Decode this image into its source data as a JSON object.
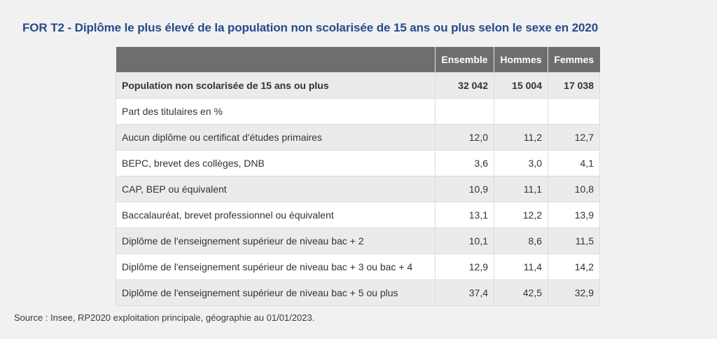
{
  "title": "FOR T2 - Diplôme le plus élevé de la population non scolarisée de 15 ans ou plus selon le sexe en 2020",
  "table": {
    "headers": [
      "",
      "Ensemble",
      "Hommes",
      "Femmes"
    ],
    "rows": [
      {
        "label": "Population non scolarisée de 15 ans ou plus",
        "ensemble": "32 042",
        "hommes": "15 004",
        "femmes": "17 038"
      },
      {
        "label": "Part des titulaires en %",
        "ensemble": "",
        "hommes": "",
        "femmes": ""
      },
      {
        "label": "Aucun diplôme ou certificat d'études primaires",
        "ensemble": "12,0",
        "hommes": "11,2",
        "femmes": "12,7"
      },
      {
        "label": "BEPC, brevet des collèges, DNB",
        "ensemble": "3,6",
        "hommes": "3,0",
        "femmes": "4,1"
      },
      {
        "label": "CAP, BEP ou équivalent",
        "ensemble": "10,9",
        "hommes": "11,1",
        "femmes": "10,8"
      },
      {
        "label": "Baccalauréat, brevet professionnel ou équivalent",
        "ensemble": "13,1",
        "hommes": "12,2",
        "femmes": "13,9"
      },
      {
        "label": "Diplôme de l'enseignement supérieur de niveau bac + 2",
        "ensemble": "10,1",
        "hommes": "8,6",
        "femmes": "11,5"
      },
      {
        "label": "Diplôme de l'enseignement supérieur de niveau bac + 3 ou bac + 4",
        "ensemble": "12,9",
        "hommes": "11,4",
        "femmes": "14,2"
      },
      {
        "label": "Diplôme de l'enseignement supérieur de niveau bac + 5 ou plus",
        "ensemble": "37,4",
        "hommes": "42,5",
        "femmes": "32,9"
      }
    ]
  },
  "source": "Source : Insee, RP2020 exploitation principale, géographie au 01/01/2023."
}
